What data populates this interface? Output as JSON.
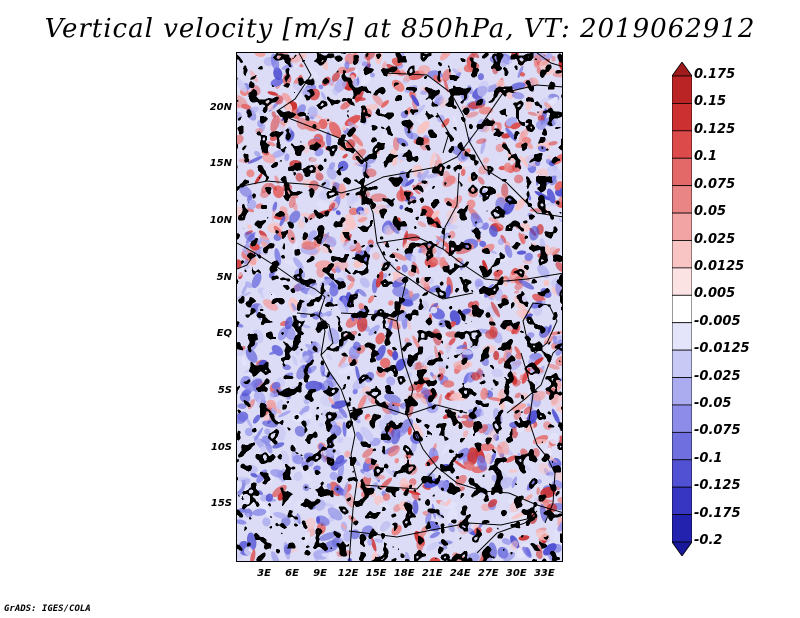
{
  "title": "Vertical velocity [m/s] at 850hPa, VT: 2019062912",
  "credit": "GrADS: IGES/COLA",
  "map": {
    "lon_range": [
      0,
      35
    ],
    "lat_range": [
      -20,
      25
    ],
    "lat_ticks": [
      {
        "label": "20N",
        "value": 20
      },
      {
        "label": "15N",
        "value": 15
      },
      {
        "label": "10N",
        "value": 10
      },
      {
        "label": "5N",
        "value": 5
      },
      {
        "label": "EQ",
        "value": 0
      },
      {
        "label": "5S",
        "value": -5
      },
      {
        "label": "10S",
        "value": -10
      },
      {
        "label": "15S",
        "value": -15
      }
    ],
    "lon_ticks": [
      {
        "label": "3E",
        "value": 3
      },
      {
        "label": "6E",
        "value": 6
      },
      {
        "label": "9E",
        "value": 9
      },
      {
        "label": "12E",
        "value": 12
      },
      {
        "label": "15E",
        "value": 15
      },
      {
        "label": "18E",
        "value": 18
      },
      {
        "label": "21E",
        "value": 21
      },
      {
        "label": "24E",
        "value": 24
      },
      {
        "label": "27E",
        "value": 27
      },
      {
        "label": "30E",
        "value": 30
      },
      {
        "label": "33E",
        "value": 33
      }
    ]
  },
  "colorbar": {
    "labels": [
      "0.175",
      "0.15",
      "0.125",
      "0.1",
      "0.075",
      "0.05",
      "0.025",
      "0.0125",
      "0.005",
      "-0.005",
      "-0.0125",
      "-0.025",
      "-0.05",
      "-0.075",
      "-0.1",
      "-0.125",
      "-0.175",
      "-0.2"
    ],
    "colors": [
      "#a01c1c",
      "#bb2424",
      "#cc3030",
      "#dc4a4a",
      "#e36868",
      "#ea8585",
      "#f2a3a3",
      "#f8c4c4",
      "#fce3e3",
      "#ffffff",
      "#e4e4fb",
      "#c9c9f5",
      "#ababf0",
      "#8d8de9",
      "#6f6fdf",
      "#5151d3",
      "#3636c3",
      "#2222ae",
      "#18189a"
    ]
  }
}
